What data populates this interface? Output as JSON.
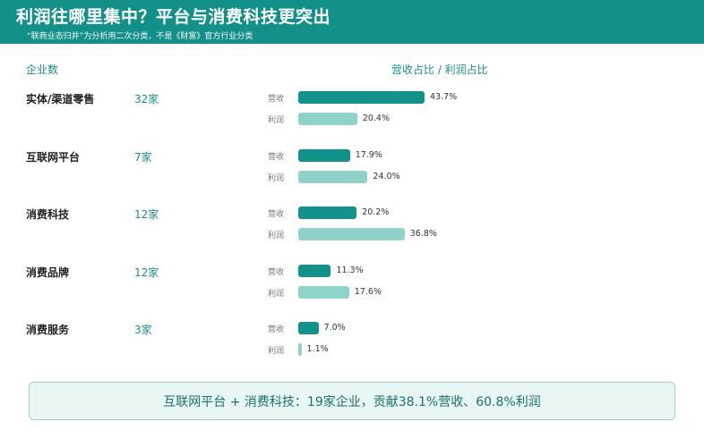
{
  "header": {
    "title": "利润往哪里集中？平台与消费科技更突出",
    "subtitle": "“联商业态归并”为分析用二次分类，不是《财富》官方行业分类"
  },
  "columns": {
    "left": "企业数",
    "right": "营收占比 / 利润占比"
  },
  "colors": {
    "header_bg": "#13908a",
    "revenue_bar": "#13928c",
    "profit_bar": "#8fd2ca",
    "accent_text": "#1a8f8a"
  },
  "chart_data": {
    "type": "bar",
    "orientation": "horizontal",
    "title": "利润往哪里集中？平台与消费科技更突出",
    "subtitle": "“联商业态归并”为分析用二次分类，不是《财富》官方行业分类",
    "x_max": 43.7,
    "unit": "%",
    "categories": [
      {
        "name": "实体/渠道零售",
        "count": "32家",
        "revenue_label": "营收",
        "revenue": 43.7,
        "revenue_text": "43.7%",
        "profit_label": "利润",
        "profit": 20.4,
        "profit_text": "20.4%"
      },
      {
        "name": "互联网平台",
        "count": "7家",
        "revenue_label": "营收",
        "revenue": 17.9,
        "revenue_text": "17.9%",
        "profit_label": "利润",
        "profit": 24.0,
        "profit_text": "24.0%"
      },
      {
        "name": "消费科技",
        "count": "12家",
        "revenue_label": "营收",
        "revenue": 20.2,
        "revenue_text": "20.2%",
        "profit_label": "利润",
        "profit": 36.8,
        "profit_text": "36.8%"
      },
      {
        "name": "消费品牌",
        "count": "12家",
        "revenue_label": "营收",
        "revenue": 11.3,
        "revenue_text": "11.3%",
        "profit_label": "利润",
        "profit": 17.6,
        "profit_text": "17.6%"
      },
      {
        "name": "消费服务",
        "count": "3家",
        "revenue_label": "营收",
        "revenue": 7.0,
        "revenue_text": "7.0%",
        "profit_label": "利润",
        "profit": 1.1,
        "profit_text": "1.1%"
      }
    ]
  },
  "summary": {
    "text": "互联网平台 + 消费科技：19家企业，贡献38.1%营收、60.8%利润"
  }
}
